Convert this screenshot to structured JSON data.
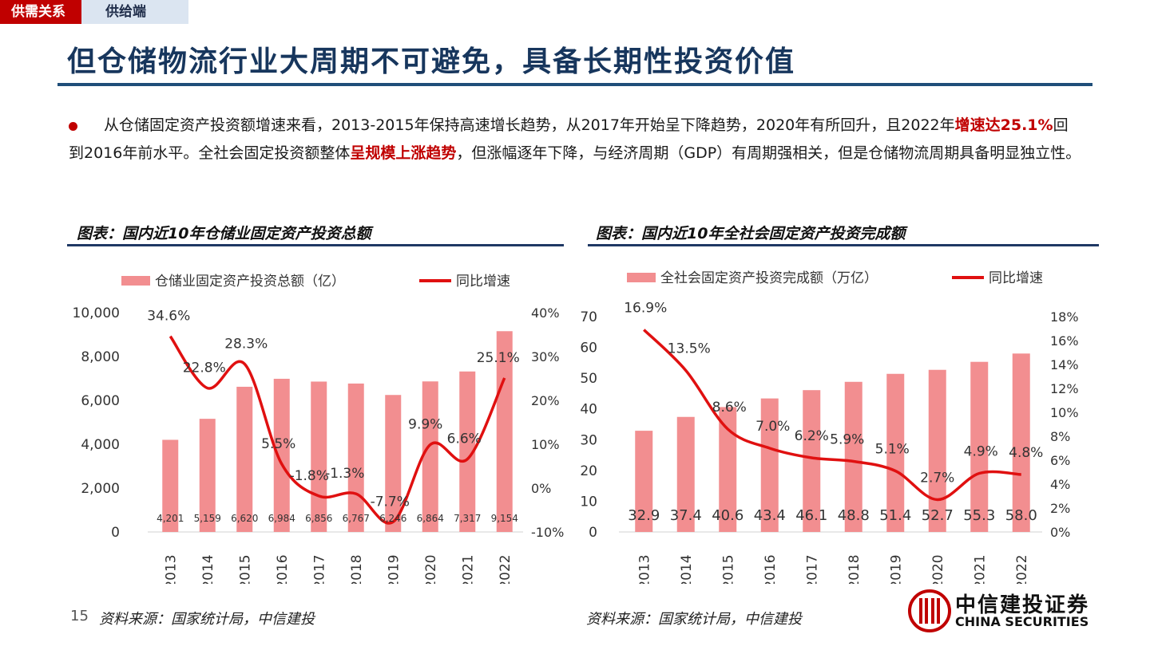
{
  "tabs": {
    "active": "供需关系",
    "inactive": "供给端"
  },
  "title": "但仓储物流行业大周期不可避免，具备长期性投资价值",
  "paragraph": {
    "p1": "从仓储固定资产投资额增速来看，2013-2015年保持高速增长趋势，从2017年开始呈下降趋势，2020年有所回升，且2022年",
    "hl1": "增速达25.1%",
    "p2": "回到2016年前水平。全社会固定投资额整体",
    "hl2": "呈规模上涨趋势",
    "p3": "，但涨幅逐年下降，与经济周期（GDP）有周期强相关，但是仓储物流周期具备明显独立性。"
  },
  "chart_left": {
    "caption": "图表：国内近10年仓储业固定资产投资总额",
    "source": "资料来源：国家统计局，中信建投"
  },
  "chart_right": {
    "caption": "图表：国内近10年全社会固定资产投资完成额",
    "source": "资料来源：国家统计局，中信建投"
  },
  "page_number": "15",
  "logo": {
    "cn": "中信建投证券",
    "en": "CHINA SECURITIES"
  },
  "colors": {
    "bar": "#f28e90",
    "line": "#e01010",
    "accent": "#c00000",
    "title": "#17365d"
  },
  "chart_data": [
    {
      "type": "bar",
      "categories": [
        "2013",
        "2014",
        "2015",
        "2016",
        "2017",
        "2018",
        "2019",
        "2020",
        "2021",
        "2022"
      ],
      "series": [
        {
          "name": "仓储业固定资产投资总额（亿）",
          "type": "bar",
          "axis": "left",
          "values": [
            4201,
            5159,
            6620,
            6984,
            6856,
            6767,
            6246,
            6864,
            7317,
            9154
          ],
          "labels": [
            "4,201",
            "5,159",
            "6,620",
            "6,984",
            "6,856",
            "6,767",
            "6,246",
            "6,864",
            "7,317",
            "9,154"
          ]
        },
        {
          "name": "同比增速",
          "type": "line",
          "axis": "right",
          "values": [
            34.6,
            22.8,
            28.3,
            5.5,
            -1.8,
            -1.3,
            -7.7,
            9.9,
            6.6,
            25.1
          ],
          "labels": [
            "34.6%",
            "22.8%",
            "28.3%",
            "5.5%",
            "-1.8%",
            "-1.3%",
            "-7.7%",
            "9.9%",
            "6.6%",
            "25.1%"
          ]
        }
      ],
      "y_left": {
        "min": 0,
        "max": 10000,
        "ticks": [
          "0",
          "2,000",
          "4,000",
          "6,000",
          "8,000",
          "10,000"
        ]
      },
      "y_right": {
        "min": -10,
        "max": 40,
        "ticks": [
          "-10%",
          "0%",
          "10%",
          "20%",
          "30%",
          "40%"
        ]
      },
      "legend": "top"
    },
    {
      "type": "bar",
      "categories": [
        "2013",
        "2014",
        "2015",
        "2016",
        "2017",
        "2018",
        "2019",
        "2020",
        "2021",
        "2022"
      ],
      "series": [
        {
          "name": "全社会固定资产投资完成额（万亿）",
          "type": "bar",
          "axis": "left",
          "values": [
            32.9,
            37.4,
            40.6,
            43.4,
            46.1,
            48.8,
            51.4,
            52.7,
            55.3,
            58.0
          ],
          "labels": [
            "32.9",
            "37.4",
            "40.6",
            "43.4",
            "46.1",
            "48.8",
            "51.4",
            "52.7",
            "55.3",
            "58.0"
          ]
        },
        {
          "name": "同比增速",
          "type": "line",
          "axis": "right",
          "values": [
            16.9,
            13.5,
            8.6,
            7.0,
            6.2,
            5.9,
            5.1,
            2.7,
            4.9,
            4.8
          ],
          "labels": [
            "16.9%",
            "13.5%",
            "8.6%",
            "7.0%",
            "6.2%",
            "5.9%",
            "5.1%",
            "2.7%",
            "4.9%",
            "4.8%"
          ]
        }
      ],
      "y_left": {
        "min": 0,
        "max": 70,
        "ticks": [
          "0",
          "10",
          "20",
          "30",
          "40",
          "50",
          "60",
          "70"
        ]
      },
      "y_right": {
        "min": 0,
        "max": 18,
        "ticks": [
          "0%",
          "2%",
          "4%",
          "6%",
          "8%",
          "10%",
          "12%",
          "14%",
          "16%",
          "18%"
        ]
      },
      "legend": "top"
    }
  ]
}
